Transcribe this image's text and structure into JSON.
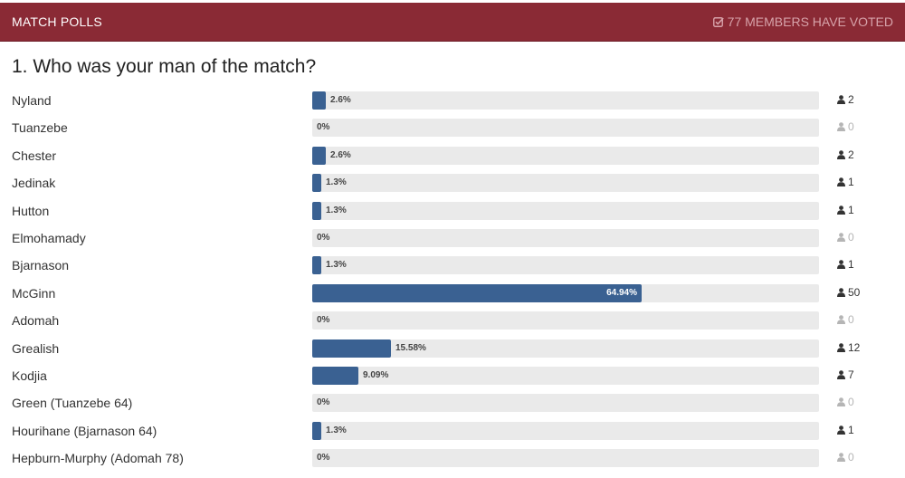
{
  "header": {
    "title": "MATCH POLLS",
    "voted": "77 MEMBERS HAVE VOTED",
    "icon": "checkbox-icon",
    "bg_color": "#8a2a35"
  },
  "question": "1. Who was your man of the match?",
  "bar_color": "#3a6192",
  "options": [
    {
      "name": "Nyland",
      "pct_label": "2.6%",
      "pct": 2.6,
      "count": "2"
    },
    {
      "name": "Tuanzebe",
      "pct_label": "0%",
      "pct": 0,
      "count": "0"
    },
    {
      "name": "Chester",
      "pct_label": "2.6%",
      "pct": 2.6,
      "count": "2"
    },
    {
      "name": "Jedinak",
      "pct_label": "1.3%",
      "pct": 1.3,
      "count": "1"
    },
    {
      "name": "Hutton",
      "pct_label": "1.3%",
      "pct": 1.3,
      "count": "1"
    },
    {
      "name": "Elmohamady",
      "pct_label": "0%",
      "pct": 0,
      "count": "0"
    },
    {
      "name": "Bjarnason",
      "pct_label": "1.3%",
      "pct": 1.3,
      "count": "1"
    },
    {
      "name": "McGinn",
      "pct_label": "64.94%",
      "pct": 64.94,
      "count": "50"
    },
    {
      "name": "Adomah",
      "pct_label": "0%",
      "pct": 0,
      "count": "0"
    },
    {
      "name": "Grealish",
      "pct_label": "15.58%",
      "pct": 15.58,
      "count": "12"
    },
    {
      "name": "Kodjia",
      "pct_label": "9.09%",
      "pct": 9.09,
      "count": "7"
    },
    {
      "name": "Green (Tuanzebe 64)",
      "pct_label": "0%",
      "pct": 0,
      "count": "0"
    },
    {
      "name": "Hourihane (Bjarnason 64)",
      "pct_label": "1.3%",
      "pct": 1.3,
      "count": "1"
    },
    {
      "name": "Hepburn-Murphy (Adomah 78)",
      "pct_label": "0%",
      "pct": 0,
      "count": "0"
    }
  ]
}
